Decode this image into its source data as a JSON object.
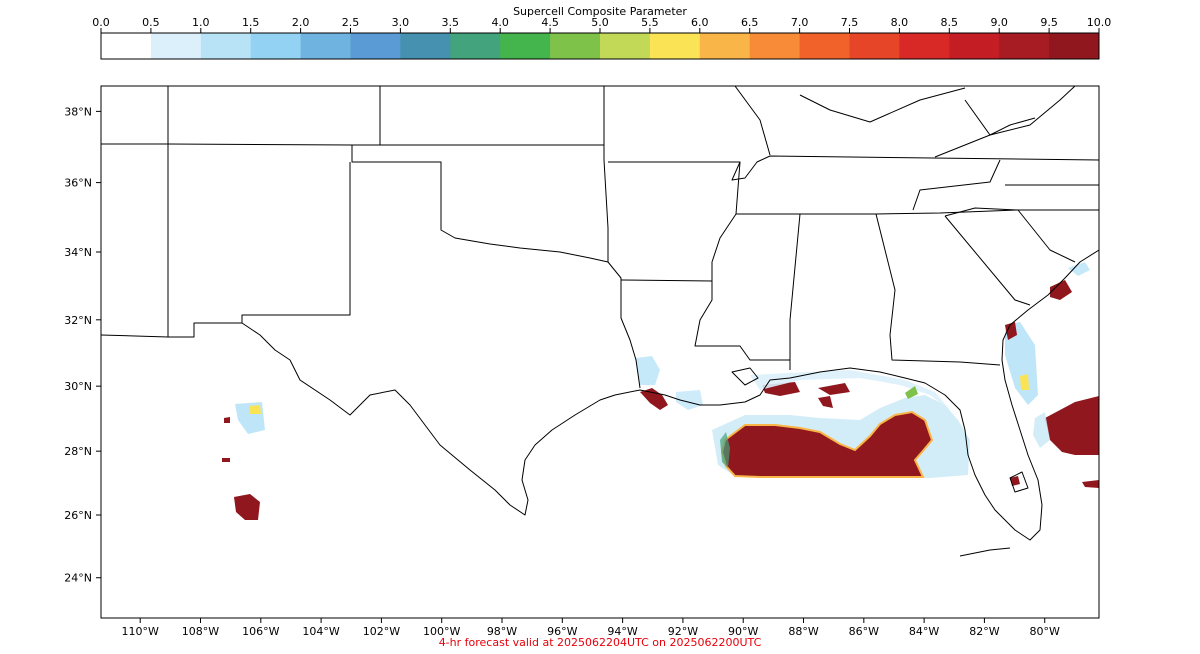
{
  "colorbar": {
    "title": "Supercell Composite Parameter",
    "ticks": [
      "0.0",
      "0.5",
      "1.0",
      "1.5",
      "2.0",
      "2.5",
      "3.0",
      "3.5",
      "4.0",
      "4.5",
      "5.0",
      "5.5",
      "6.0",
      "6.5",
      "7.0",
      "7.5",
      "8.0",
      "8.5",
      "9.0",
      "9.5",
      "10.0"
    ],
    "colors": [
      "#ffffff",
      "#dcf0fb",
      "#b8e3f7",
      "#93d2f2",
      "#6fb4e0",
      "#5a9bd5",
      "#4691b0",
      "#42a37c",
      "#44b54c",
      "#7fc24a",
      "#c1d957",
      "#fae455",
      "#f9b548",
      "#f78b37",
      "#f06229",
      "#e64528",
      "#d92926",
      "#c41d24",
      "#a71c22",
      "#90171e"
    ]
  },
  "map": {
    "lat_labels": [
      "38°N",
      "36°N",
      "34°N",
      "32°N",
      "30°N",
      "28°N",
      "26°N",
      "24°N"
    ],
    "lon_labels": [
      "110°W",
      "108°W",
      "106°W",
      "104°W",
      "102°W",
      "100°W",
      "98°W",
      "96°W",
      "94°W",
      "92°W",
      "90°W",
      "88°W",
      "86°W",
      "84°W",
      "82°W",
      "80°W"
    ],
    "extent": {
      "lon": [
        -111.3,
        -78.2
      ],
      "lat": [
        22.7,
        38.7
      ]
    }
  },
  "footer": {
    "text": "4-hr forecast valid at 2025062204UTC on 2025062200UTC",
    "color": "#e8000b"
  }
}
